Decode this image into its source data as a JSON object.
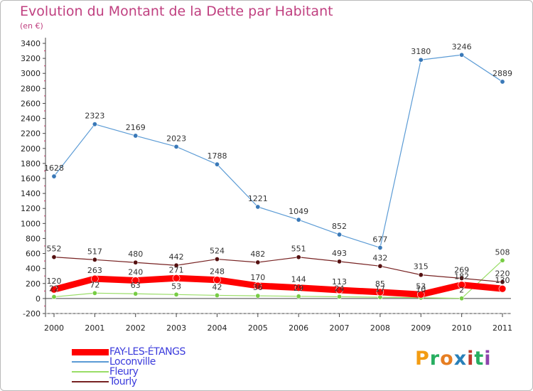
{
  "chart_data": {
    "type": "line",
    "title": "Evolution du Montant de la Dette par Habitant",
    "subtitle": "(en €)",
    "categories": [
      "2000",
      "2001",
      "2002",
      "2003",
      "2004",
      "2005",
      "2006",
      "2007",
      "2008",
      "2009",
      "2010",
      "2011"
    ],
    "ylim": [
      -200,
      3400
    ],
    "yticks": [
      "-200",
      "0",
      "200",
      "400",
      "600",
      "800",
      "1000",
      "1200",
      "1400",
      "1600",
      "1800",
      "2000",
      "2200",
      "2400",
      "2600",
      "2800",
      "3000",
      "3200",
      "3400"
    ],
    "grid": false,
    "legend_position": "bottom-left",
    "series": [
      {
        "name": "Loconville",
        "color": "#5b9bd5",
        "values": [
          1628,
          2323,
          2169,
          2023,
          1788,
          1221,
          1049,
          852,
          677,
          3180,
          3246,
          2889
        ],
        "labels": [
          "1628",
          "2323",
          "2169",
          "2023",
          "1788",
          "1221",
          "1049",
          "852",
          "677",
          "3180",
          "3246",
          "2889"
        ]
      },
      {
        "name": "Fleury",
        "color": "#99dd66",
        "values": [
          22,
          72,
          63,
          53,
          42,
          36,
          29,
          24,
          17,
          10,
          2,
          508
        ],
        "labels": [
          "22",
          "72",
          "63",
          "53",
          "42",
          "36",
          "29",
          "24",
          "17",
          "10",
          "2",
          "508"
        ]
      },
      {
        "name": "Tourly",
        "color": "#772222",
        "values": [
          552,
          517,
          480,
          442,
          524,
          482,
          551,
          493,
          432,
          315,
          269,
          220
        ],
        "labels": [
          "552",
          "517",
          "480",
          "442",
          "524",
          "482",
          "551",
          "493",
          "432",
          "315",
          "269",
          "220"
        ]
      },
      {
        "name": "FAY-LES-ÉTANGS",
        "color": "#ff0000",
        "values": [
          120,
          263,
          240,
          271,
          248,
          170,
          144,
          113,
          85,
          53,
          182,
          130
        ],
        "labels": [
          "120",
          "263",
          "240",
          "271",
          "248",
          "170",
          "144",
          "113",
          "85",
          "53",
          "182",
          "130"
        ]
      }
    ],
    "legend": [
      {
        "name": "FAY-LES-ÉTANGS",
        "color": "#ff0000"
      },
      {
        "name": "Loconville",
        "color": "#5b9bd5"
      },
      {
        "name": "Fleury",
        "color": "#99dd66"
      },
      {
        "name": "Tourly",
        "color": "#772222"
      }
    ]
  },
  "brand": {
    "letters": [
      "P",
      "r",
      "o",
      "x",
      "i",
      "t",
      "i"
    ],
    "colors": [
      "#f39c12",
      "#27ae60",
      "#e67e22",
      "#2980b9",
      "#c0392b",
      "#27ae60",
      "#8e44ad"
    ]
  }
}
